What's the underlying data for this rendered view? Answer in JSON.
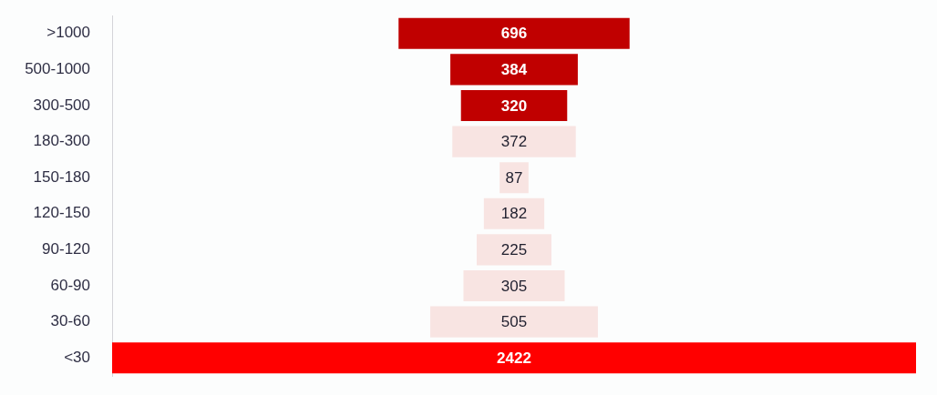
{
  "chart_data": {
    "type": "other",
    "categories": [
      ">1000",
      "500-1000",
      "300-500",
      "180-300",
      "150-180",
      "120-150",
      "90-120",
      "60-90",
      "30-60",
      "<30"
    ],
    "values": [
      696,
      384,
      320,
      372,
      87,
      182,
      225,
      305,
      505,
      2422
    ],
    "colors": [
      "#c00000",
      "#c00000",
      "#c00000",
      "#f8e4e2",
      "#f8e4e2",
      "#f8e4e2",
      "#f8e4e2",
      "#f8e4e2",
      "#f8e4e2",
      "#ff0000"
    ],
    "data_labels": true
  }
}
